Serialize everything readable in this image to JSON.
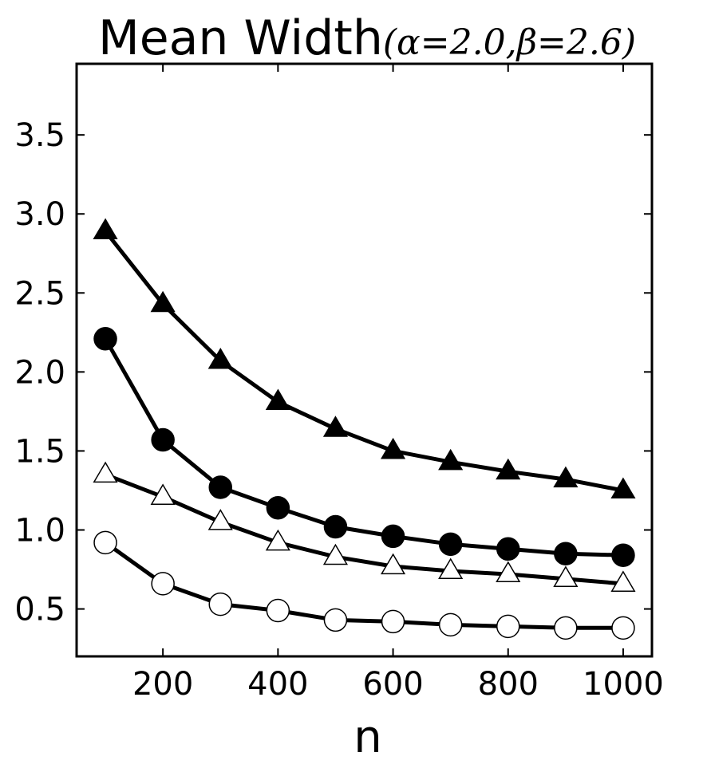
{
  "chart_data": {
    "type": "line",
    "title": "Mean Width",
    "title_params": "(α=2.0,β=2.6)",
    "xlabel": "n",
    "ylabel": "",
    "xlim": [
      50,
      1050
    ],
    "ylim": [
      0.2,
      3.95
    ],
    "xticks": [
      200,
      400,
      600,
      800,
      1000
    ],
    "yticks": [
      0.5,
      1.0,
      1.5,
      2.0,
      2.5,
      3.0,
      3.5
    ],
    "xtick_labels": [
      "200",
      "400",
      "600",
      "800",
      "1000"
    ],
    "ytick_labels": [
      "0.5",
      "1.0",
      "1.5",
      "2.0",
      "2.5",
      "3.0",
      "3.5"
    ],
    "grid": false,
    "legend": "none",
    "x": [
      100,
      200,
      300,
      400,
      500,
      600,
      700,
      800,
      900,
      1000
    ],
    "series": [
      {
        "marker": "filled-triangle",
        "color": "#000000",
        "values": [
          2.89,
          2.43,
          2.07,
          1.81,
          1.64,
          1.5,
          1.43,
          1.37,
          1.32,
          1.25
        ]
      },
      {
        "marker": "filled-circle",
        "color": "#000000",
        "values": [
          2.21,
          1.57,
          1.27,
          1.14,
          1.02,
          0.96,
          0.91,
          0.88,
          0.85,
          0.84
        ]
      },
      {
        "marker": "open-triangle",
        "color": "#000000",
        "values": [
          1.35,
          1.21,
          1.05,
          0.92,
          0.83,
          0.77,
          0.74,
          0.72,
          0.69,
          0.66
        ]
      },
      {
        "marker": "open-circle",
        "color": "#000000",
        "values": [
          0.92,
          0.66,
          0.53,
          0.49,
          0.43,
          0.42,
          0.4,
          0.39,
          0.38,
          0.38
        ]
      }
    ]
  }
}
